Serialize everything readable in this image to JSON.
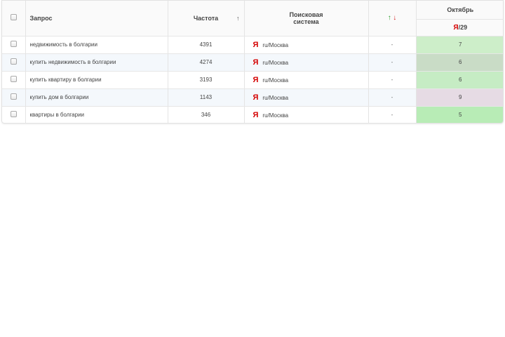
{
  "table": {
    "headers": {
      "query": "Запрос",
      "frequency": "Частота",
      "sort_arrow": "↑",
      "engine_line1": "Поисковая",
      "engine_line2": "система",
      "dyn_up": "↑",
      "dyn_down": "↓",
      "month": "Октябрь",
      "engine_logo": "Я",
      "engine_date": "/29"
    },
    "rows": [
      {
        "query": "недвижимость в болгарии",
        "frequency": "4391",
        "engine_logo": "Я",
        "region": "ru/Москва",
        "dynamics": "-",
        "position": "7",
        "position_color": "#cdeec9"
      },
      {
        "query": "купить недвижимость в болгарии",
        "frequency": "4274",
        "engine_logo": "Я",
        "region": "ru/Москва",
        "dynamics": "-",
        "position": "6",
        "position_color": "#c9dcc6"
      },
      {
        "query": "купить квартиру в болгарии",
        "frequency": "3193",
        "engine_logo": "Я",
        "region": "ru/Москва",
        "dynamics": "-",
        "position": "6",
        "position_color": "#c6ecc4"
      },
      {
        "query": "купить дом в болгарии",
        "frequency": "1143",
        "engine_logo": "Я",
        "region": "ru/Москва",
        "dynamics": "-",
        "position": "9",
        "position_color": "#e6dbe4"
      },
      {
        "query": "квартиры в болгарии",
        "frequency": "346",
        "engine_logo": "Я",
        "region": "ru/Москва",
        "dynamics": "-",
        "position": "5",
        "position_color": "#b8ecb6"
      }
    ]
  },
  "colors": {
    "yandex_red": "#d40000",
    "arrow_up": "#2a9d2a",
    "arrow_down": "#d42020"
  }
}
